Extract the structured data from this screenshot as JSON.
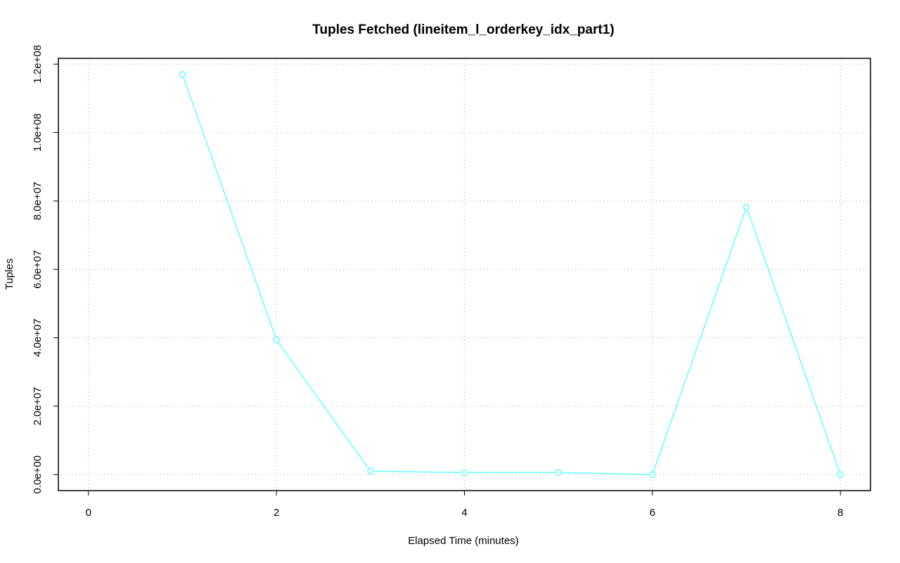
{
  "chart_data": {
    "type": "line",
    "title": "Tuples Fetched (lineitem_l_orderkey_idx_part1)",
    "x_label": "Elapsed Time (minutes)",
    "y_label": "Tuples",
    "x": [
      1,
      2,
      3,
      4,
      5,
      6,
      7,
      8
    ],
    "values": [
      117000000,
      39400000,
      1000000,
      600000,
      600000,
      0,
      78200000,
      0
    ],
    "color": "#66ffff",
    "xlim": [
      -0.32,
      8.32
    ],
    "xticks": [
      0,
      2,
      4,
      6,
      8
    ],
    "ylim": [
      -4680000,
      121700000
    ],
    "yticks": [
      {
        "value": 0,
        "label": "0.0e+00"
      },
      {
        "value": 20000000,
        "label": "2.0e+07"
      },
      {
        "value": 40000000,
        "label": "4.0e+07"
      },
      {
        "value": 60000000,
        "label": "6.0e+07"
      },
      {
        "value": 80000000,
        "label": "8.0e+07"
      },
      {
        "value": 100000000,
        "label": "1.0e+08"
      },
      {
        "value": 120000000,
        "label": "1.2e+08"
      }
    ],
    "grid": true
  }
}
